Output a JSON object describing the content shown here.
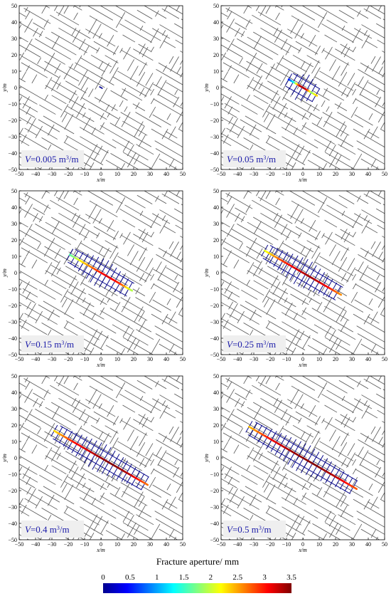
{
  "figure": {
    "colorbar": {
      "title": "Fracture aperture/ mm",
      "ticks": [
        "0",
        "0.5",
        "1",
        "1.5",
        "2",
        "2.5",
        "3",
        "3.5"
      ],
      "range": [
        0,
        3.5
      ],
      "colormap": "jet"
    }
  },
  "chart_data": [
    {
      "type": "scatter",
      "description_label": "V=0.005 m3/m",
      "label_parts": {
        "var": "V",
        "value": "=0.005 m",
        "sup": "3",
        "tail": "/m"
      },
      "xlabel": "x/m",
      "ylabel": "y/m",
      "xlim": [
        -50,
        50
      ],
      "ylim": [
        -50,
        50
      ],
      "xticks": [
        "−50",
        "−40",
        "−30",
        "−20",
        "−10",
        "0",
        "10",
        "20",
        "30",
        "40",
        "50"
      ],
      "yticks": [
        "50",
        "40",
        "30",
        "20",
        "10",
        "0",
        "−10",
        "−20",
        "−30",
        "−40",
        "−50"
      ],
      "injected_extent": 0.012,
      "aperture_profile": [
        0,
        0,
        0,
        0,
        0,
        0
      ]
    },
    {
      "type": "scatter",
      "label_parts": {
        "var": "V",
        "value": "=0.05 m",
        "sup": "3",
        "tail": "/m"
      },
      "xlabel": "x/m",
      "ylabel": "y/m",
      "xlim": [
        -50,
        50
      ],
      "ylim": [
        -50,
        50
      ],
      "xticks": [
        "−50",
        "−40",
        "−30",
        "−20",
        "−10",
        "0",
        "10",
        "20",
        "30",
        "40",
        "50"
      ],
      "yticks": [
        "50",
        "40",
        "30",
        "20",
        "10",
        "0",
        "−10",
        "−20",
        "−30",
        "−40",
        "−50"
      ],
      "injected_extent": 0.1,
      "aperture_profile": [
        0.5,
        1.5,
        3.3,
        3.3,
        1.8,
        2.4
      ]
    },
    {
      "type": "scatter",
      "label_parts": {
        "var": "V",
        "value": "=0.15 m",
        "sup": "3",
        "tail": "/m"
      },
      "xlabel": "x/m",
      "ylabel": "y/m",
      "xlim": [
        -50,
        50
      ],
      "ylim": [
        -50,
        50
      ],
      "xticks": [
        "−50",
        "−40",
        "−30",
        "−20",
        "−10",
        "0",
        "10",
        "20",
        "30",
        "40",
        "50"
      ],
      "yticks": [
        "50",
        "40",
        "30",
        "20",
        "10",
        "0",
        "−10",
        "−20",
        "−30",
        "−40",
        "−50"
      ],
      "injected_extent": 0.22,
      "aperture_profile": [
        1.6,
        2.3,
        2.8,
        3.2,
        2.9,
        1.8
      ]
    },
    {
      "type": "scatter",
      "label_parts": {
        "var": "V",
        "value": "=0.25 m",
        "sup": "3",
        "tail": "/m"
      },
      "xlabel": "x/m",
      "ylabel": "y/m",
      "xlim": [
        -50,
        50
      ],
      "ylim": [
        -50,
        50
      ],
      "xticks": [
        "−50",
        "−40",
        "−30",
        "−20",
        "−10",
        "0",
        "10",
        "20",
        "30",
        "40",
        "50"
      ],
      "yticks": [
        "50",
        "40",
        "30",
        "20",
        "10",
        "0",
        "−10",
        "−20",
        "−30",
        "−40",
        "−50"
      ],
      "injected_extent": 0.27,
      "aperture_profile": [
        2.1,
        2.8,
        3.2,
        3.4,
        3.1,
        2.5
      ]
    },
    {
      "type": "scatter",
      "label_parts": {
        "var": "V",
        "value": "=0.4 m",
        "sup": "3",
        "tail": "/m"
      },
      "xlabel": "x/m",
      "ylabel": "y/m",
      "xlim": [
        -50,
        50
      ],
      "ylim": [
        -50,
        50
      ],
      "xticks": [
        "−50",
        "−40",
        "−30",
        "−20",
        "−10",
        "0",
        "10",
        "20",
        "30",
        "40",
        "50"
      ],
      "yticks": [
        "50",
        "40",
        "30",
        "20",
        "10",
        "0",
        "−10",
        "−20",
        "−30",
        "−40",
        "−50"
      ],
      "injected_extent": 0.33,
      "aperture_profile": [
        2.3,
        3.0,
        3.3,
        3.5,
        3.3,
        2.6
      ]
    },
    {
      "type": "scatter",
      "label_parts": {
        "var": "V",
        "value": "=0.5 m",
        "sup": "3",
        "tail": "/m"
      },
      "xlabel": "x/m",
      "ylabel": "y/m",
      "xlim": [
        -50,
        50
      ],
      "ylim": [
        -50,
        50
      ],
      "xticks": [
        "−50",
        "−40",
        "−30",
        "−20",
        "−10",
        "0",
        "10",
        "20",
        "30",
        "40",
        "50"
      ],
      "yticks": [
        "50",
        "40",
        "30",
        "20",
        "10",
        "0",
        "−10",
        "−20",
        "−30",
        "−40",
        "−50"
      ],
      "injected_extent": 0.38,
      "aperture_profile": [
        2.4,
        3.1,
        3.4,
        3.5,
        3.3,
        2.7
      ]
    }
  ]
}
